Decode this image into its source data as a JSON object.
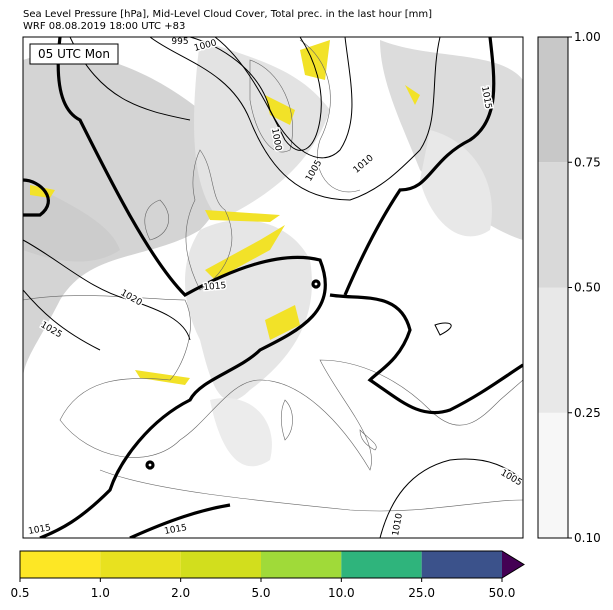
{
  "header": {
    "title": [
      "Sea Level Pressure [hPa], Mid-Level Cloud Cover, Total prec. in the last hour [mm]",
      "WRF 08.08.2019 18:00 UTC +83"
    ]
  },
  "map": {
    "time_label": "05 UTC Mon",
    "contour_labels": [
      "995",
      "1000",
      "1000",
      "1005",
      "1010",
      "1015",
      "1015",
      "1020",
      "1025",
      "1005",
      "1010",
      "1015",
      "1015"
    ]
  },
  "cloud_colorbar": {
    "ticks": [
      "0.10",
      "0.25",
      "0.50",
      "0.75",
      "1.00"
    ]
  },
  "precip_colorbar": {
    "ticks": [
      "0.5",
      "1.0",
      "2.0",
      "5.0",
      "10.0",
      "25.0",
      "50.0"
    ]
  }
}
